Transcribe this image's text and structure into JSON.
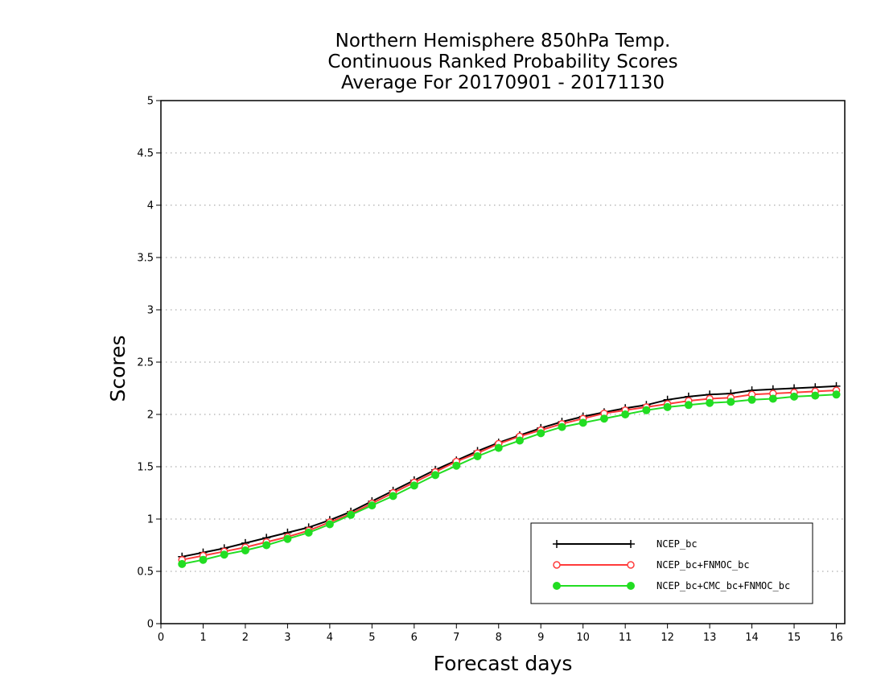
{
  "chart_data": {
    "type": "line",
    "title_lines": [
      "Northern Hemisphere 850hPa Temp.",
      "Continuous Ranked Probability Scores",
      "Average For 20170901 - 20171130"
    ],
    "xlabel": "Forecast days",
    "ylabel": "Scores",
    "xlim": [
      0,
      16.2
    ],
    "ylim": [
      0,
      5
    ],
    "xticks": [
      "0",
      "1",
      "2",
      "3",
      "4",
      "5",
      "6",
      "7",
      "8",
      "9",
      "10",
      "11",
      "12",
      "13",
      "14",
      "15",
      "16"
    ],
    "yticks": [
      "0",
      "0.5",
      "1",
      "1.5",
      "2",
      "2.5",
      "3",
      "3.5",
      "4",
      "4.5",
      "5"
    ],
    "grid": true,
    "legend_position": "lower-right",
    "x": [
      0.5,
      1.0,
      1.5,
      2.0,
      2.5,
      3.0,
      3.5,
      4.0,
      4.5,
      5.0,
      5.5,
      6.0,
      6.5,
      7.0,
      7.5,
      8.0,
      8.5,
      9.0,
      9.5,
      10.0,
      10.5,
      11.0,
      11.5,
      12.0,
      12.5,
      13.0,
      13.5,
      14.0,
      14.5,
      15.0,
      15.5,
      16.0
    ],
    "series": [
      {
        "name": "NCEP_bc",
        "color": "#000000",
        "marker": "plus",
        "values": [
          0.64,
          0.68,
          0.72,
          0.77,
          0.82,
          0.87,
          0.92,
          0.99,
          1.07,
          1.17,
          1.27,
          1.37,
          1.47,
          1.56,
          1.65,
          1.73,
          1.8,
          1.87,
          1.93,
          1.98,
          2.02,
          2.06,
          2.09,
          2.14,
          2.17,
          2.19,
          2.2,
          2.23,
          2.24,
          2.25,
          2.26,
          2.27
        ]
      },
      {
        "name": "NCEP_bc+FNMOC_bc",
        "color": "#ff3b3b",
        "marker": "open-circle",
        "values": [
          0.61,
          0.65,
          0.69,
          0.73,
          0.78,
          0.83,
          0.89,
          0.97,
          1.05,
          1.15,
          1.25,
          1.35,
          1.45,
          1.55,
          1.63,
          1.72,
          1.79,
          1.85,
          1.91,
          1.96,
          2.01,
          2.04,
          2.07,
          2.1,
          2.13,
          2.15,
          2.16,
          2.19,
          2.2,
          2.21,
          2.22,
          2.23
        ]
      },
      {
        "name": "NCEP_bc+CMC_bc+FNMOC_bc",
        "color": "#22dd22",
        "marker": "filled-circle",
        "values": [
          0.57,
          0.61,
          0.66,
          0.7,
          0.75,
          0.81,
          0.87,
          0.95,
          1.04,
          1.13,
          1.22,
          1.32,
          1.42,
          1.51,
          1.6,
          1.68,
          1.75,
          1.82,
          1.88,
          1.92,
          1.96,
          2.0,
          2.04,
          2.07,
          2.09,
          2.11,
          2.12,
          2.14,
          2.15,
          2.17,
          2.18,
          2.19
        ]
      }
    ]
  }
}
